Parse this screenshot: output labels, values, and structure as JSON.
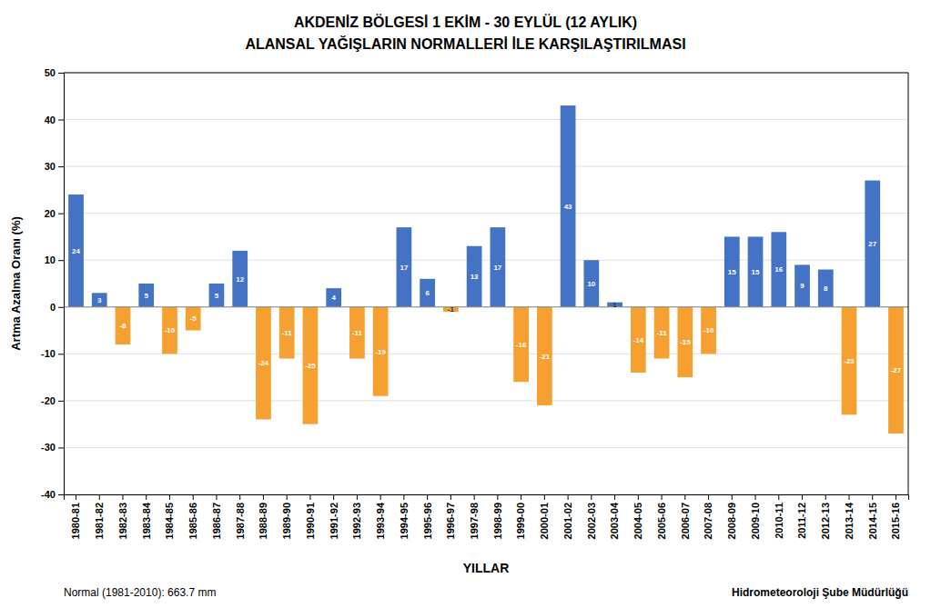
{
  "chart_data": {
    "type": "bar",
    "title": "AKDENİZ BÖLGESİ  1 EKİM - 30 EYLÜL (12 AYLIK)",
    "subtitle": "ALANSAL YAĞIŞLARIN NORMALLERİ İLE KARŞILAŞTIRILMASI",
    "ylabel": "Artma Azalma Oranı (%)",
    "xlabel": "YILLAR",
    "annotations": [
      "Normal (1981-2010): 663.7 mm",
      "Hidrometeoroloji Şube Müdürlüğü"
    ],
    "categories": [
      "1980-81",
      "1981-82",
      "1982-83",
      "1983-84",
      "1984-85",
      "1985-86",
      "1986-87",
      "1987-88",
      "1988-89",
      "1989-90",
      "1990-91",
      "1991-92",
      "1992-93",
      "1993-94",
      "1994-95",
      "1995-96",
      "1996-97",
      "1997-98",
      "1998-99",
      "1999-00",
      "2000-01",
      "2001-02",
      "2002-03",
      "2003-04",
      "2004-05",
      "2005-06",
      "2006-07",
      "2007-08",
      "2008-09",
      "2009-10",
      "2010-11",
      "2011-12",
      "2012-13",
      "2013-14",
      "2014-15",
      "2015-16"
    ],
    "values": [
      24,
      3,
      -8,
      5,
      -10,
      -5,
      5,
      12,
      -24,
      -11,
      -25,
      4,
      -11,
      -19,
      17,
      6,
      -1,
      13,
      17,
      -16,
      -21,
      43,
      10,
      1,
      -14,
      -11,
      -15,
      -10,
      15,
      15,
      16,
      9,
      8,
      -23,
      27,
      -27
    ],
    "colors": [
      "#4472c4",
      "#4472c4",
      "#f5a030",
      "#4472c4",
      "#f5a030",
      "#f5a030",
      "#4472c4",
      "#4472c4",
      "#f5a030",
      "#f5a030",
      "#f5a030",
      "#4472c4",
      "#f5a030",
      "#f5a030",
      "#4472c4",
      "#4472c4",
      "#f5a030",
      "#4472c4",
      "#4472c4",
      "#f5a030",
      "#f5a030",
      "#4472c4",
      "#4472c4",
      "#4472c4",
      "#f5a030",
      "#f5a030",
      "#f5a030",
      "#f5a030",
      "#4472c4",
      "#4472c4",
      "#4472c4",
      "#4472c4",
      "#4472c4",
      "#f5a030",
      "#4472c4",
      "#f5a030"
    ],
    "ylim": [
      -40,
      50
    ],
    "yticks": [
      -40,
      -30,
      -20,
      -10,
      0,
      10,
      20,
      30,
      40,
      50
    ],
    "grid": true,
    "data_labels": true
  }
}
